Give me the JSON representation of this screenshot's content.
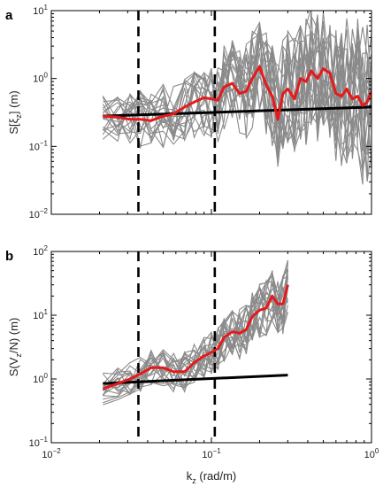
{
  "chart_data": [
    {
      "panel_letter": "a",
      "type": "line",
      "xscale": "log",
      "yscale": "log",
      "xlim": [
        0.01,
        1
      ],
      "ylim": [
        0.01,
        10
      ],
      "ylabel_base": "S[ξ",
      "ylabel_sub": "z",
      "ylabel_tail": "] (m)",
      "x_ticks": [
        0.01,
        0.1,
        1
      ],
      "y_ticks": [
        {
          "value": 0.01,
          "base": "10",
          "exp": "−2"
        },
        {
          "value": 0.1,
          "base": "10",
          "exp": "−1"
        },
        {
          "value": 1,
          "base": "10",
          "exp": "0"
        },
        {
          "value": 10,
          "base": "10",
          "exp": "1"
        }
      ],
      "vlines": [
        0.035,
        0.105
      ],
      "colors": {
        "samples": "#8a8a8a",
        "mean": "#e41a1c",
        "fit": "#000000",
        "vline": "#000000"
      },
      "mean_series": {
        "x": [
          0.021,
          0.026,
          0.031,
          0.036,
          0.042,
          0.05,
          0.058,
          0.068,
          0.078,
          0.09,
          0.1,
          0.11,
          0.12,
          0.135,
          0.15,
          0.165,
          0.18,
          0.2,
          0.22,
          0.24,
          0.26,
          0.28,
          0.3,
          0.33,
          0.36,
          0.39,
          0.42,
          0.46,
          0.5,
          0.55,
          0.6,
          0.65,
          0.7,
          0.76,
          0.82,
          0.88,
          0.94,
          1.0
        ],
        "y": [
          0.28,
          0.27,
          0.25,
          0.25,
          0.24,
          0.28,
          0.3,
          0.38,
          0.45,
          0.52,
          0.5,
          0.48,
          0.75,
          0.85,
          0.6,
          0.65,
          1.0,
          1.5,
          0.8,
          0.55,
          0.25,
          0.6,
          0.7,
          0.5,
          1.0,
          0.9,
          1.3,
          1.0,
          1.4,
          1.2,
          0.6,
          0.55,
          0.7,
          0.5,
          0.55,
          0.4,
          0.45,
          0.65
        ]
      },
      "fit_series": {
        "x": [
          0.021,
          1.0
        ],
        "y": [
          0.28,
          0.38
        ]
      },
      "sample_count": 20,
      "sample_xmax": 1.0
    },
    {
      "panel_letter": "b",
      "type": "line",
      "xscale": "log",
      "yscale": "log",
      "xlim": [
        0.01,
        1
      ],
      "ylim": [
        0.1,
        100
      ],
      "ylabel_base": "S(V",
      "ylabel_sub": "z",
      "ylabel_tail": "/N) (m)",
      "xlabel_base": "k",
      "xlabel_sub": "z",
      "xlabel_tail": " (rad/m)",
      "x_ticks": [
        {
          "value": 0.01,
          "base": "10",
          "exp": "−2"
        },
        {
          "value": 0.1,
          "base": "10",
          "exp": "−1"
        },
        {
          "value": 1,
          "base": "10",
          "exp": "0"
        }
      ],
      "y_ticks": [
        {
          "value": 0.1,
          "base": "10",
          "exp": "−1"
        },
        {
          "value": 1,
          "base": "10",
          "exp": "0"
        },
        {
          "value": 10,
          "base": "10",
          "exp": "1"
        },
        {
          "value": 100,
          "base": "10",
          "exp": "2"
        }
      ],
      "vlines": [
        0.035,
        0.105
      ],
      "colors": {
        "samples": "#8a8a8a",
        "mean": "#e41a1c",
        "fit": "#000000",
        "vline": "#000000"
      },
      "mean_series": {
        "x": [
          0.021,
          0.026,
          0.031,
          0.036,
          0.042,
          0.05,
          0.058,
          0.068,
          0.078,
          0.09,
          0.1,
          0.11,
          0.12,
          0.135,
          0.15,
          0.165,
          0.18,
          0.2,
          0.22,
          0.24,
          0.26,
          0.28,
          0.3
        ],
        "y": [
          0.7,
          0.85,
          1.0,
          1.2,
          1.5,
          1.5,
          1.3,
          1.3,
          1.8,
          2.3,
          2.6,
          3.0,
          4.5,
          5.5,
          5.2,
          6.0,
          9.5,
          12.0,
          13.0,
          20.0,
          15.0,
          15.0,
          30.0
        ]
      },
      "fit_series": {
        "x": [
          0.021,
          0.3
        ],
        "y": [
          0.85,
          1.15
        ]
      },
      "sample_count": 20,
      "sample_xmax": 0.3
    }
  ]
}
